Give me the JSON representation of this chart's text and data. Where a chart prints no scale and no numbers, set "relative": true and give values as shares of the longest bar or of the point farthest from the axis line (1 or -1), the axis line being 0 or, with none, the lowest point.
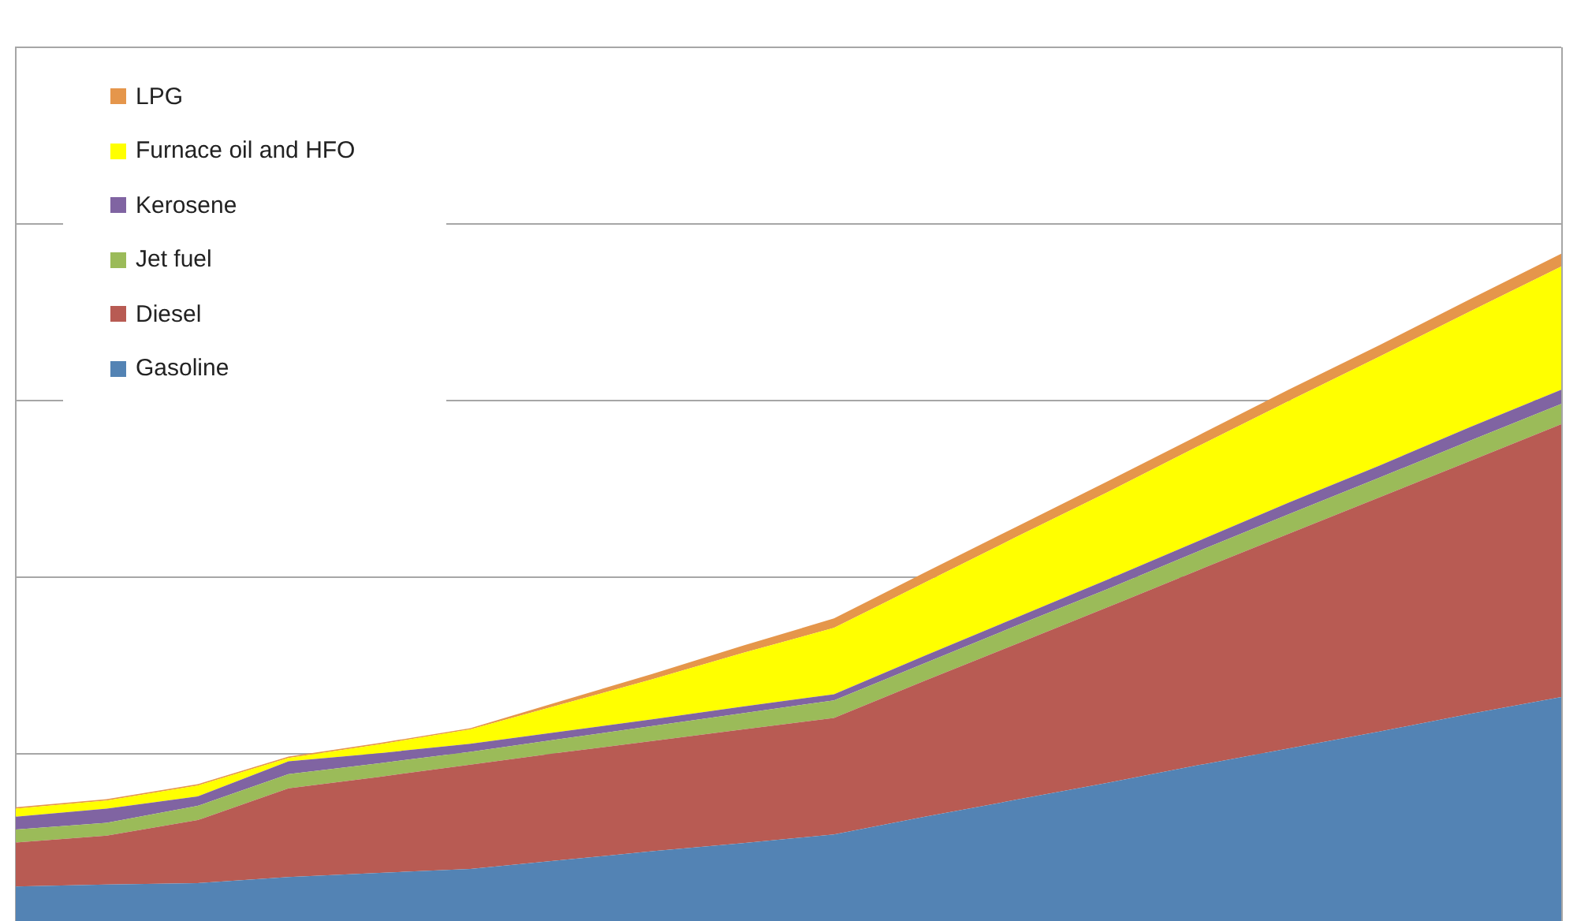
{
  "chart_data": {
    "type": "area",
    "relative": true,
    "stacked": true,
    "grid": "y",
    "legend": "top left",
    "categories": [
      null,
      null,
      null,
      null,
      null,
      null,
      null,
      null,
      null,
      null,
      null,
      null,
      null,
      null,
      null,
      null,
      null,
      null
    ],
    "series": [
      {
        "name": "Gasoline",
        "color": "#5383b4",
        "values": [
          0.065,
          0.068,
          0.07,
          0.079,
          0.085,
          0.091,
          0.104,
          0.117,
          0.129,
          0.142,
          0.168,
          0.193,
          0.218,
          0.244,
          0.269,
          0.294,
          0.32,
          0.345
        ]
      },
      {
        "name": "Diesel",
        "color": "#b85b53",
        "values": [
          0.065,
          0.072,
          0.093,
          0.131,
          0.142,
          0.154,
          0.159,
          0.163,
          0.168,
          0.172,
          0.201,
          0.23,
          0.259,
          0.288,
          0.317,
          0.346,
          0.374,
          0.403
        ]
      },
      {
        "name": "Jet fuel",
        "color": "#9bbb59",
        "values": [
          0.019,
          0.019,
          0.021,
          0.021,
          0.02,
          0.019,
          0.02,
          0.022,
          0.024,
          0.026,
          0.026,
          0.027,
          0.027,
          0.028,
          0.029,
          0.029,
          0.03,
          0.03
        ]
      },
      {
        "name": "Kerosene",
        "color": "#8064a2",
        "values": [
          0.019,
          0.021,
          0.014,
          0.019,
          0.015,
          0.012,
          0.011,
          0.01,
          0.01,
          0.009,
          0.011,
          0.012,
          0.014,
          0.015,
          0.017,
          0.018,
          0.02,
          0.021
        ]
      },
      {
        "name": "Furnace oil and HFO",
        "color": "#ffff00",
        "values": [
          0.012,
          0.012,
          0.016,
          0.005,
          0.013,
          0.021,
          0.04,
          0.059,
          0.079,
          0.098,
          0.108,
          0.119,
          0.129,
          0.14,
          0.15,
          0.161,
          0.171,
          0.182
        ]
      },
      {
        "name": "LPG",
        "color": "#e5964b",
        "values": [
          0.002,
          0.002,
          0.002,
          0.002,
          0.002,
          0.002,
          0.005,
          0.008,
          0.011,
          0.014,
          0.015,
          0.015,
          0.016,
          0.016,
          0.017,
          0.017,
          0.018,
          0.019
        ]
      }
    ]
  }
}
